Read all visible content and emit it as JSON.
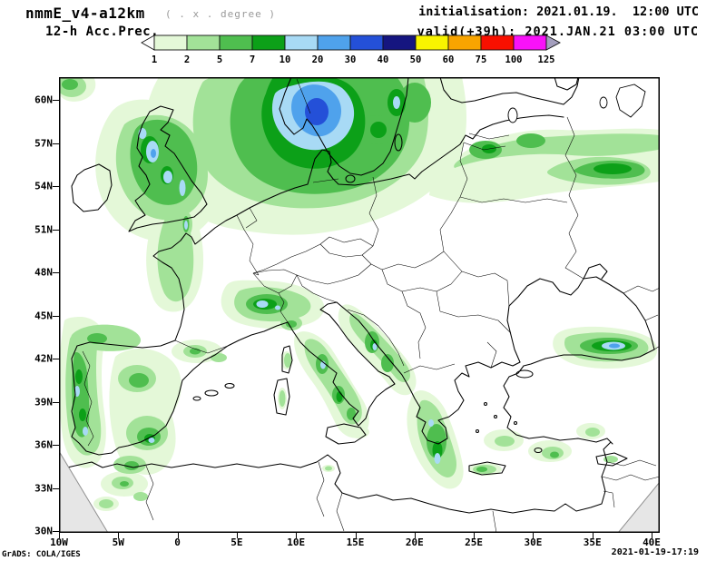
{
  "header": {
    "model_title": "nmmE_v4-a12km",
    "resolution_note": "( . x . degree )",
    "variable_label": "12-h Acc.Prec.",
    "init_label": "initialisation: 2021.01.19.  12:00 UTC",
    "valid_label": "valid(+39h): 2021.JAN.21 03:00 UTC"
  },
  "legend": {
    "tick_labels": [
      "1",
      "2",
      "5",
      "7",
      "10",
      "20",
      "30",
      "40",
      "50",
      "60",
      "75",
      "100",
      "125"
    ],
    "cell_colors": [
      "#e4f8d8",
      "#a2e298",
      "#4fbe4f",
      "#0ca018",
      "#a8daf5",
      "#4fa2ec",
      "#2450d8",
      "#151580",
      "#f8f400",
      "#f8a400",
      "#f81000",
      "#f812f8"
    ],
    "arrow_left_color": "#fcfcfc",
    "arrow_right_color": "#a49fbe"
  },
  "axes": {
    "lat_labels": [
      "60N",
      "57N",
      "54N",
      "51N",
      "48N",
      "45N",
      "42N",
      "39N",
      "36N",
      "33N",
      "30N"
    ],
    "lon_labels": [
      "10W",
      "5W",
      "0",
      "5E",
      "10E",
      "15E",
      "20E",
      "25E",
      "30E",
      "35E",
      "40E"
    ]
  },
  "footer": {
    "credit": "GrADS: COLA/IGES",
    "timestamp": "2021-01-19-17:19"
  }
}
